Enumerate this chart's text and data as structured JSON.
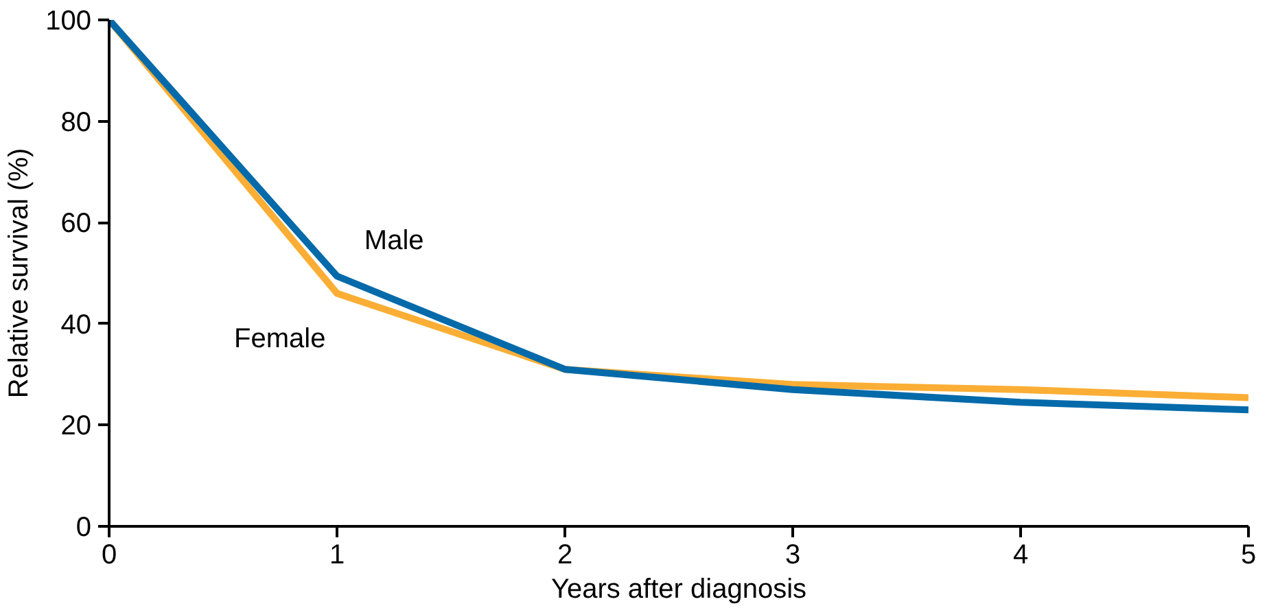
{
  "chart_data": {
    "type": "line",
    "xlabel": "Years after diagnosis",
    "ylabel": "Relative survival (%)",
    "x": [
      0,
      1,
      2,
      3,
      4,
      5
    ],
    "series": [
      {
        "name": "Female",
        "color": "#fbae35",
        "values": [
          100,
          46,
          31,
          28,
          27,
          25.4
        ]
      },
      {
        "name": "Male",
        "color": "#046aaa",
        "values": [
          100,
          49.4,
          31,
          27,
          24.5,
          23
        ]
      }
    ],
    "xlim": [
      0,
      5
    ],
    "ylim": [
      0,
      100
    ],
    "xticks": [
      0,
      1,
      2,
      3,
      4,
      5
    ],
    "yticks": [
      0,
      20,
      40,
      60,
      80,
      100
    ],
    "grid": false,
    "legend": false,
    "marker": "none",
    "line_style": "solid"
  }
}
